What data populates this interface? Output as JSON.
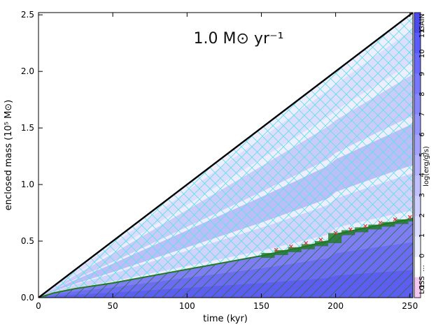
{
  "chart_data": {
    "type": "area",
    "title": "1.0 M⊙ yr⁻¹",
    "xlabel": "time (kyr)",
    "ylabel": "enclosed mass (10⁵ M⊙)",
    "xlim": [
      0,
      252
    ],
    "ylim": [
      0,
      2.52
    ],
    "x_ticks": [
      0,
      50,
      100,
      150,
      200,
      250
    ],
    "x_tick_labels": [
      "0",
      "50",
      "100",
      "150",
      "200",
      "250"
    ],
    "y_ticks": [
      0.0,
      0.5,
      1.0,
      1.5,
      2.0,
      2.5
    ],
    "y_tick_labels": [
      "0.0",
      "0.5",
      "1.0",
      "1.5",
      "2.0",
      "2.5"
    ],
    "grid": false,
    "series": [
      {
        "name": "",
        "role": "total enclosed mass (black line)",
        "color": "#000000",
        "x": [
          0,
          252
        ],
        "y": [
          0,
          2.52
        ]
      },
      {
        "name": "",
        "role": "lower boundary of cyan cross-hatched region (green line)",
        "color": "#1f7a1f",
        "x": [
          0,
          10,
          25,
          50,
          75,
          100,
          125,
          150,
          175,
          195,
          200,
          225,
          252
        ],
        "y": [
          0.0,
          0.04,
          0.08,
          0.13,
          0.19,
          0.25,
          0.31,
          0.37,
          0.44,
          0.5,
          0.56,
          0.63,
          0.7
        ]
      },
      {
        "name": "",
        "role": "red markers along upper edge of lower zone",
        "color": "#d43a3a",
        "x": [
          160,
          170,
          180,
          190,
          200,
          210,
          220,
          230,
          240,
          250
        ],
        "y": [
          0.41,
          0.44,
          0.47,
          0.5,
          0.56,
          0.59,
          0.62,
          0.65,
          0.68,
          0.7
        ]
      }
    ],
    "colorbar": {
      "label": "log(erg/g/s)",
      "top_label": "GAIN",
      "bottom_label": "LOSS",
      "ticks": [
        "11",
        "10",
        "9",
        "8",
        "7",
        "6",
        "5",
        "4",
        "3",
        "2",
        "1",
        "0",
        "...",
        "-1"
      ]
    },
    "colors": {
      "cross_hatch": "#5ee0e8",
      "diagonal_hatch": "#2a6e4a",
      "gain_dark": "#5a5af0",
      "gain_light": "#eeeeff",
      "loss": "#f4c8f0",
      "boundary_line": "#1f7a1f"
    }
  }
}
